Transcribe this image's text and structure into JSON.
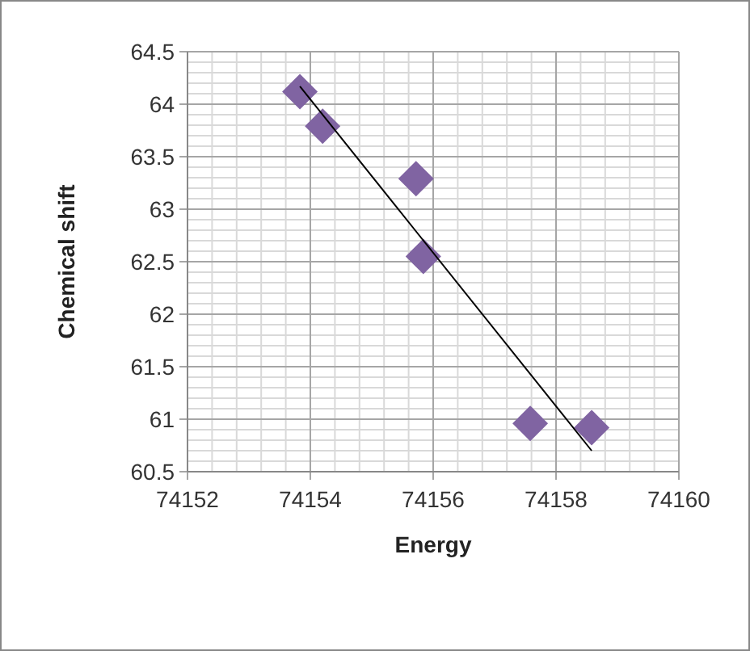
{
  "chart_data": {
    "type": "scatter",
    "xlabel": "Energy",
    "ylabel": "Chemical shift",
    "xlim": [
      74152,
      74160
    ],
    "ylim": [
      60.5,
      64.5
    ],
    "xticks": [
      74152,
      74154,
      74156,
      74158,
      74160
    ],
    "yticks": [
      60.5,
      61,
      61.5,
      62,
      62.5,
      63,
      63.5,
      64,
      64.5
    ],
    "grid": true,
    "series": [
      {
        "color": "#8064a2",
        "marker": "diamond",
        "x": [
          74153.83,
          74154.2,
          74155.72,
          74155.84,
          74157.58,
          74158.58
        ],
        "values": [
          64.12,
          63.79,
          63.29,
          62.55,
          60.96,
          60.92
        ]
      },
      {
        "type": "line",
        "color": "#000000",
        "marker": "none",
        "line_style": "solid",
        "x": [
          74153.83,
          74158.58
        ],
        "values": [
          64.17,
          60.7
        ]
      }
    ]
  }
}
